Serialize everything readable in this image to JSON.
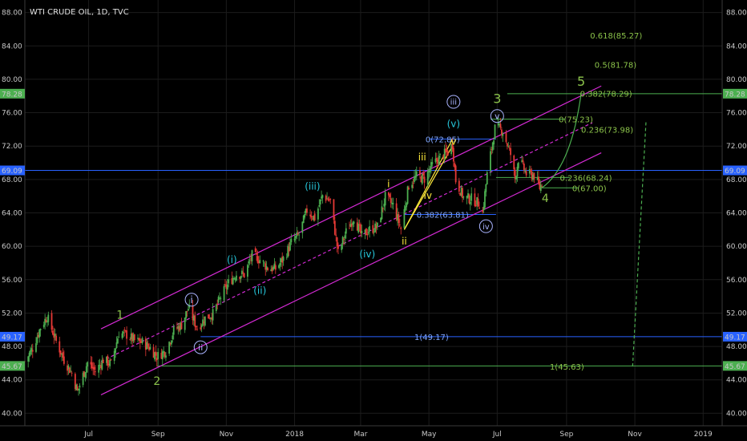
{
  "chart_data": {
    "type": "candlestick",
    "title": "WTI CRUDE OIL, 1D, TVC",
    "y_range": [
      38.5,
      89.5
    ],
    "y_ticks": [
      "40.00",
      "44.00",
      "48.00",
      "52.00",
      "56.00",
      "60.00",
      "64.00",
      "68.00",
      "72.00",
      "76.00",
      "80.00",
      "84.00",
      "88.00"
    ],
    "x_range": [
      "2017-05-05",
      "2019-01-18"
    ],
    "x_ticks": [
      {
        "label": "Jul",
        "date": "2017-07-01"
      },
      {
        "label": "Sep",
        "date": "2017-09-01"
      },
      {
        "label": "Nov",
        "date": "2017-11-01"
      },
      {
        "label": "2018",
        "date": "2018-01-01"
      },
      {
        "label": "Mar",
        "date": "2018-03-01"
      },
      {
        "label": "May",
        "date": "2018-05-01"
      },
      {
        "label": "Jul",
        "date": "2018-07-01"
      },
      {
        "label": "Sep",
        "date": "2018-09-01"
      },
      {
        "label": "Nov",
        "date": "2018-11-01"
      },
      {
        "label": "2019",
        "date": "2019-01-01"
      }
    ],
    "price_path": [
      [
        "2017-05-05",
        46.2
      ],
      [
        "2017-05-12",
        47.8
      ],
      [
        "2017-05-19",
        50.3
      ],
      [
        "2017-05-25",
        51.6
      ],
      [
        "2017-06-02",
        48.6
      ],
      [
        "2017-06-09",
        46.4
      ],
      [
        "2017-06-16",
        44.8
      ],
      [
        "2017-06-21",
        42.6
      ],
      [
        "2017-06-30",
        46.1
      ],
      [
        "2017-07-07",
        45.0
      ],
      [
        "2017-07-14",
        46.4
      ],
      [
        "2017-07-21",
        45.9
      ],
      [
        "2017-07-28",
        49.6
      ],
      [
        "2017-08-04",
        49.4
      ],
      [
        "2017-08-11",
        48.7
      ],
      [
        "2017-08-18",
        48.5
      ],
      [
        "2017-08-25",
        47.8
      ],
      [
        "2017-08-31",
        46.8
      ],
      [
        "2017-09-08",
        47.5
      ],
      [
        "2017-09-15",
        49.9
      ],
      [
        "2017-09-22",
        50.6
      ],
      [
        "2017-09-28",
        52.6
      ],
      [
        "2017-10-06",
        50.2
      ],
      [
        "2017-10-13",
        51.4
      ],
      [
        "2017-10-20",
        51.9
      ],
      [
        "2017-10-27",
        53.9
      ],
      [
        "2017-11-03",
        55.6
      ],
      [
        "2017-11-10",
        56.7
      ],
      [
        "2017-11-17",
        56.6
      ],
      [
        "2017-11-24",
        58.9
      ],
      [
        "2017-12-01",
        58.4
      ],
      [
        "2017-12-08",
        57.4
      ],
      [
        "2017-12-15",
        57.3
      ],
      [
        "2017-12-22",
        58.5
      ],
      [
        "2017-12-29",
        60.4
      ],
      [
        "2018-01-05",
        61.4
      ],
      [
        "2018-01-12",
        64.3
      ],
      [
        "2018-01-19",
        63.4
      ],
      [
        "2018-01-26",
        66.1
      ],
      [
        "2018-02-02",
        65.4
      ],
      [
        "2018-02-09",
        59.2
      ],
      [
        "2018-02-16",
        61.7
      ],
      [
        "2018-02-23",
        63.5
      ],
      [
        "2018-03-02",
        61.2
      ],
      [
        "2018-03-09",
        62.0
      ],
      [
        "2018-03-16",
        62.3
      ],
      [
        "2018-03-23",
        65.9
      ],
      [
        "2018-03-30",
        64.9
      ],
      [
        "2018-04-06",
        62.1
      ],
      [
        "2018-04-13",
        67.3
      ],
      [
        "2018-04-20",
        68.4
      ],
      [
        "2018-04-27",
        68.1
      ],
      [
        "2018-05-04",
        69.7
      ],
      [
        "2018-05-11",
        70.7
      ],
      [
        "2018-05-18",
        71.3
      ],
      [
        "2018-05-22",
        72.2
      ],
      [
        "2018-05-25",
        67.9
      ],
      [
        "2018-06-01",
        65.8
      ],
      [
        "2018-06-08",
        65.7
      ],
      [
        "2018-06-15",
        65.1
      ],
      [
        "2018-06-18",
        64.0
      ],
      [
        "2018-06-22",
        68.6
      ],
      [
        "2018-06-29",
        74.1
      ],
      [
        "2018-07-03",
        74.1
      ],
      [
        "2018-07-06",
        73.8
      ],
      [
        "2018-07-13",
        71.0
      ],
      [
        "2018-07-17",
        68.1
      ],
      [
        "2018-07-20",
        70.5
      ],
      [
        "2018-07-27",
        68.7
      ],
      [
        "2018-08-03",
        68.5
      ],
      [
        "2018-08-08",
        67.0
      ],
      [
        "2018-08-10",
        67.6
      ]
    ],
    "right_axis_markers": [
      {
        "label": "78.28",
        "price": 78.28,
        "color": "#4caf50"
      },
      {
        "label": "69.09",
        "price": 69.09,
        "color": "#2962ff"
      },
      {
        "label": "49.17",
        "price": 49.17,
        "color": "#2962ff"
      },
      {
        "label": "45.67",
        "price": 45.67,
        "color": "#4caf50"
      }
    ],
    "left_axis_markers": [
      {
        "label": "78.28",
        "price": 78.28,
        "color": "#4caf50"
      },
      {
        "label": "69.09",
        "price": 69.09,
        "color": "#2962ff"
      },
      {
        "label": "49.17",
        "price": 49.17,
        "color": "#2962ff"
      },
      {
        "label": "45.67",
        "price": 45.67,
        "color": "#4caf50"
      }
    ],
    "fib_labels": [
      {
        "text": "0.618(85.27)",
        "date": "2018-09-22",
        "price": 85.27,
        "color": "#8bc34a"
      },
      {
        "text": "0.5(81.78)",
        "date": "2018-09-26",
        "price": 81.78,
        "color": "#8bc34a"
      },
      {
        "text": "0.382(78.29)",
        "date": "2018-09-13",
        "price": 78.29,
        "color": "#8bc34a"
      },
      {
        "text": "0(75.23)",
        "date": "2018-08-25",
        "price": 75.23,
        "color": "#8bc34a"
      },
      {
        "text": "0.236(73.98)",
        "date": "2018-09-14",
        "price": 73.98,
        "color": "#8bc34a"
      },
      {
        "text": "0.236(68.24)",
        "date": "2018-08-26",
        "price": 68.24,
        "color": "#8bc34a"
      },
      {
        "text": "0(67.00)",
        "date": "2018-09-06",
        "price": 67.0,
        "color": "#8bc34a"
      },
      {
        "text": "1(45.63)",
        "date": "2018-08-17",
        "price": 45.63,
        "color": "#8bc34a"
      },
      {
        "text": "0(72.85)",
        "date": "2018-04-28",
        "price": 72.85,
        "color": "#7fa7ff"
      },
      {
        "text": "1(49.17)",
        "date": "2018-04-18",
        "price": 49.17,
        "color": "#7fa7ff"
      },
      {
        "text": "0.382(63.81)",
        "date": "2018-04-20",
        "price": 63.81,
        "color": "#7fa7ff"
      }
    ],
    "wave_labels": [
      {
        "text": "1",
        "date": "2017-07-29",
        "price": 51.8,
        "color": "#8bc34a",
        "size": 14,
        "circle": false
      },
      {
        "text": "2",
        "date": "2017-08-31",
        "price": 43.9,
        "color": "#8bc34a",
        "size": 14,
        "circle": false
      },
      {
        "text": "3",
        "date": "2018-07-01",
        "price": 77.7,
        "color": "#8bc34a",
        "size": 16,
        "circle": false
      },
      {
        "text": "4",
        "date": "2018-08-13",
        "price": 65.8,
        "color": "#8bc34a",
        "size": 14,
        "circle": false
      },
      {
        "text": "5",
        "date": "2018-09-14",
        "price": 79.8,
        "color": "#8bc34a",
        "size": 16,
        "circle": false
      },
      {
        "text": "i",
        "date": "2017-10-01",
        "price": 53.6,
        "color": "#aab4ff",
        "size": 12,
        "circle": true
      },
      {
        "text": "ii",
        "date": "2017-10-09",
        "price": 47.9,
        "color": "#aab4ff",
        "size": 11,
        "circle": true
      },
      {
        "text": "iii",
        "date": "2018-05-23",
        "price": 77.3,
        "color": "#aab4ff",
        "size": 10,
        "circle": true
      },
      {
        "text": "iv",
        "date": "2018-06-21",
        "price": 62.4,
        "color": "#aab4ff",
        "size": 10,
        "circle": true
      },
      {
        "text": "v",
        "date": "2018-07-01",
        "price": 75.6,
        "color": "#aab4ff",
        "size": 11,
        "circle": true
      },
      {
        "text": "(i)",
        "date": "2017-11-06",
        "price": 58.4,
        "color": "#26c6da",
        "size": 12,
        "circle": false
      },
      {
        "text": "(ii)",
        "date": "2017-12-01",
        "price": 54.7,
        "color": "#26c6da",
        "size": 12,
        "circle": false
      },
      {
        "text": "(iii)",
        "date": "2018-01-17",
        "price": 67.2,
        "color": "#26c6da",
        "size": 12,
        "circle": false
      },
      {
        "text": "(iv)",
        "date": "2018-03-07",
        "price": 59.1,
        "color": "#26c6da",
        "size": 12,
        "circle": false
      },
      {
        "text": "(v)",
        "date": "2018-05-23",
        "price": 74.7,
        "color": "#26c6da",
        "size": 12,
        "circle": false
      },
      {
        "text": "i",
        "date": "2018-03-26",
        "price": 67.5,
        "color": "#ffeb3b",
        "size": 12,
        "circle": false
      },
      {
        "text": "ii",
        "date": "2018-04-09",
        "price": 60.6,
        "color": "#ffeb3b",
        "size": 12,
        "circle": false
      },
      {
        "text": "iii",
        "date": "2018-04-25",
        "price": 70.7,
        "color": "#ffeb3b",
        "size": 12,
        "circle": false
      },
      {
        "text": "iv",
        "date": "2018-04-30",
        "price": 66.1,
        "color": "#ffeb3b",
        "size": 12,
        "circle": false
      },
      {
        "text": "v",
        "date": "2018-05-23",
        "price": 72.6,
        "color": "#ffeb3b",
        "size": 12,
        "circle": false
      }
    ],
    "trendlines": [
      {
        "from": [
          "2017-07-12",
          50.1
        ],
        "to": [
          "2018-10-02",
          79.2
        ],
        "color": "#d42ad4",
        "dash": false
      },
      {
        "from": [
          "2017-07-12",
          42.2
        ],
        "to": [
          "2018-10-02",
          71.2
        ],
        "color": "#d42ad4",
        "dash": false
      },
      {
        "from": [
          "2017-07-12",
          46.2
        ],
        "to": [
          "2018-09-24",
          74.8
        ],
        "color": "#d42ad4",
        "dash": true
      },
      {
        "from": [
          "2018-04-09",
          62.0
        ],
        "to": [
          "2018-05-22",
          72.8
        ],
        "color": "#ffeb3b",
        "dash": false
      },
      {
        "from": [
          "2018-04-09",
          62.0
        ],
        "to": [
          "2018-05-22",
          72.0
        ],
        "color": "#ffeb3b",
        "dash": false
      }
    ],
    "horizontal_levels": [
      {
        "price": 78.28,
        "from": "2018-07-10",
        "to": "2019-01-18",
        "color": "#4caf50"
      },
      {
        "price": 69.09,
        "from": "2017-05-05",
        "to": "2019-01-18",
        "color": "#2962ff"
      },
      {
        "price": 49.17,
        "from": "2017-10-09",
        "to": "2019-01-18",
        "color": "#2962ff"
      },
      {
        "price": 45.67,
        "from": "2017-08-31",
        "to": "2019-01-18",
        "color": "#4caf50"
      },
      {
        "price": 75.23,
        "from": "2018-06-25",
        "to": "2018-08-31",
        "color": "#4caf50"
      },
      {
        "price": 68.24,
        "from": "2018-06-30",
        "to": "2018-09-04",
        "color": "#4caf50"
      },
      {
        "price": 67.0,
        "from": "2018-08-08",
        "to": "2018-09-12",
        "color": "#4caf50"
      },
      {
        "price": 72.85,
        "from": "2018-05-01",
        "to": "2018-06-30",
        "color": "#2962ff"
      },
      {
        "price": 63.81,
        "from": "2018-04-09",
        "to": "2018-06-30",
        "color": "#2962ff"
      }
    ],
    "projection_curve": {
      "from": [
        "2018-08-10",
        67.0
      ],
      "ctrl": [
        "2018-09-05",
        69.5
      ],
      "to": [
        "2018-09-14",
        78.3
      ],
      "color": "#4caf50"
    },
    "projection_dashed": {
      "from": [
        "2018-10-30",
        45.6
      ],
      "to": [
        "2018-11-11",
        75.0
      ],
      "color": "#4caf50"
    },
    "grid": true
  }
}
